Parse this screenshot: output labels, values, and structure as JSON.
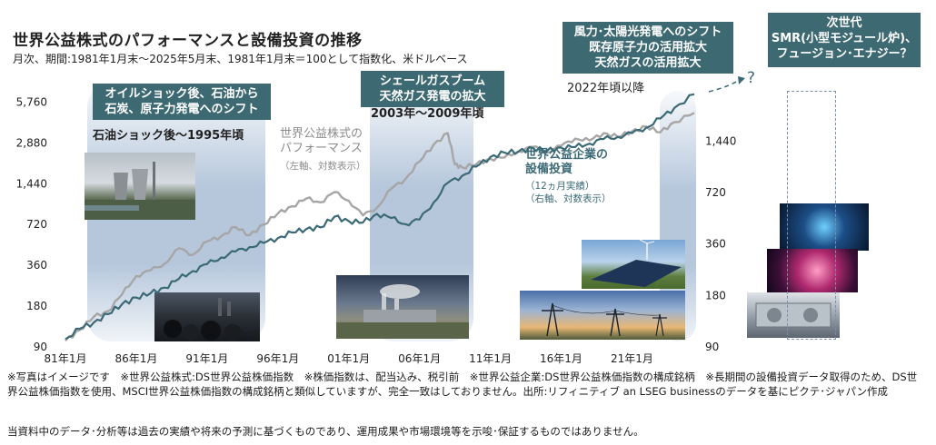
{
  "title": "世界公益株式のパフォーマンスと設備投資の推移",
  "subtitle": "月次、期間:1981年1月末～2025年5月末、1981年1月末＝100として指数化、米ドルベース",
  "colors": {
    "teal": "#3d6a72",
    "gray_line": "#a6a6a6",
    "teal_line": "#3b6a76",
    "band": "#b4c6dc"
  },
  "eras": [
    {
      "label": "オイルショック後、石油から\n石炭、原子力発電へのシフト",
      "period": "石油ショック後～1995年頃"
    },
    {
      "label": "シェールガスブーム\n天然ガス発電の拡大",
      "period": "2003年～2009年頃"
    },
    {
      "label": "風力･太陽光発電へのシフト\n既存原子力の活用拡大\n天然ガスの活用拡大",
      "period": "2022年頃以降"
    }
  ],
  "next_gen": {
    "label": "次世代\nSMR(小型モジュール炉)、\nフュージョン･エナジー？",
    "question": "?"
  },
  "series_labels": {
    "equity": {
      "name": "世界公益株式の\nパフォーマンス",
      "axis": "（左軸、対数表示）"
    },
    "capex": {
      "name": "世界公益企業の\n設備投資",
      "detail": "（12ヵ月実績）",
      "axis": "（右軸、対数表示）"
    }
  },
  "photo_icons": [
    "power-plant-photo",
    "coal-photo",
    "gas-plant-photo",
    "solar-wind-photo",
    "power-lines-photo",
    "reactor-photo",
    "fusion-photo",
    "smr-photo"
  ],
  "notes": "※写真はイメージです　※世界公益株式:DS世界公益株価指数　※株価指数は、配当込み、税引前　※世界公益企業:DS世界公益株価指数の構成銘柄　※長期間の設備投資データ取得のため、DS世界公益株価指数を使用、MSCI世界公益株価指数の構成銘柄と類似していますが、完全一致はしておりません。出所:リフィニティブ an LSEG businessのデータを基にピクテ･ジャパン作成",
  "disclaimer": "当資料中のデータ･分析等は過去の実績や将来の予測に基づくものであり、運用成果や市場環境等を示唆･保証するものではありません。",
  "chart_data": {
    "type": "line",
    "xlabels": [
      "81年1月",
      "86年1月",
      "91年1月",
      "96年1月",
      "01年1月",
      "06年1月",
      "11年1月",
      "16年1月",
      "21年1月"
    ],
    "x_years": [
      1981,
      1986,
      1991,
      1996,
      2001,
      2006,
      2011,
      2016,
      2021
    ],
    "left_ticks": [
      "5,760",
      "2,880",
      "1,440",
      "720",
      "360",
      "180",
      "90"
    ],
    "left_tick_values": [
      5760,
      2880,
      1440,
      720,
      360,
      180,
      90
    ],
    "right_ticks": [
      "1,440",
      "720",
      "360",
      "180",
      "90"
    ],
    "right_tick_values": [
      1440,
      720,
      360,
      180,
      90
    ],
    "ylim_left": [
      90,
      7200
    ],
    "ylim_right": [
      90,
      2900
    ],
    "xlim": [
      1981,
      2025.4
    ],
    "log_scale": true,
    "series": [
      {
        "name": "世界公益株式のパフォーマンス",
        "axis": "left",
        "color": "#a6a6a6",
        "x": [
          1981,
          1982,
          1983,
          1984,
          1985,
          1986,
          1987,
          1988,
          1989,
          1990,
          1991,
          1992,
          1993,
          1994,
          1995,
          1996,
          1997,
          1998,
          1999,
          2000,
          2001,
          2002,
          2003,
          2004,
          2005,
          2006,
          2007,
          2008,
          2008.5,
          2009,
          2010,
          2011,
          2012,
          2013,
          2014,
          2015,
          2016,
          2017,
          2018,
          2019,
          2020,
          2021,
          2022,
          2023,
          2024,
          2025.4
        ],
        "y": [
          100,
          120,
          150,
          165,
          220,
          300,
          330,
          370,
          480,
          430,
          540,
          590,
          690,
          600,
          720,
          870,
          980,
          1120,
          1050,
          1250,
          1080,
          840,
          960,
          1320,
          1560,
          2100,
          2800,
          3400,
          2000,
          1900,
          2000,
          2200,
          2250,
          2500,
          2700,
          2450,
          2750,
          3100,
          3000,
          3400,
          3200,
          3500,
          3800,
          3450,
          4100,
          4800
        ]
      },
      {
        "name": "世界公益企業の設備投資",
        "axis": "right",
        "color": "#3b6a76",
        "x": [
          1981,
          1982,
          1983,
          1984,
          1985,
          1986,
          1987,
          1988,
          1989,
          1990,
          1991,
          1992,
          1993,
          1994,
          1995,
          1996,
          1997,
          1998,
          1999,
          2000,
          2001,
          2002,
          2003,
          2004,
          2005,
          2006,
          2007,
          2008,
          2009,
          2010,
          2011,
          2012,
          2013,
          2014,
          2015,
          2016,
          2017,
          2018,
          2019,
          2020,
          2021,
          2022,
          2023,
          2024,
          2025.4
        ],
        "y": [
          100,
          115,
          125,
          140,
          160,
          175,
          185,
          200,
          225,
          250,
          275,
          300,
          325,
          345,
          365,
          390,
          420,
          440,
          450,
          520,
          490,
          480,
          540,
          510,
          470,
          500,
          630,
          820,
          900,
          1020,
          1160,
          1230,
          1250,
          1310,
          1260,
          1320,
          1330,
          1390,
          1480,
          1520,
          1600,
          1720,
          1950,
          2250,
          2700
        ]
      }
    ]
  }
}
